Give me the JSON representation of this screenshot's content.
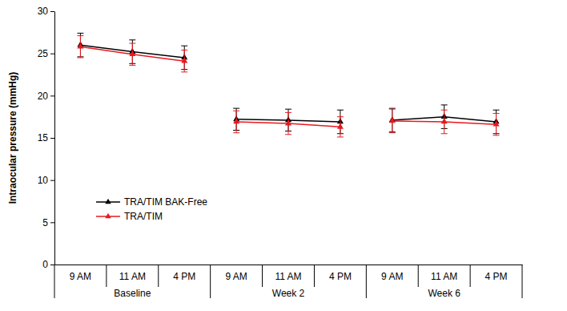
{
  "chart_data": {
    "type": "line",
    "y_label": "Intraocular pressure (mmHg)",
    "categories": [
      "9 AM",
      "11 AM",
      "4 PM",
      "9 AM",
      "11 AM",
      "4 PM",
      "9 AM",
      "11 AM",
      "4 PM"
    ],
    "groups": [
      "Baseline",
      "Baseline",
      "Baseline",
      "Week 2",
      "Week 2",
      "Week 2",
      "Week 6",
      "Week 6",
      "Week 6"
    ],
    "series": [
      {
        "name": "TRA/TIM BAK-Free",
        "color": "#000000",
        "marker": "triangle",
        "values": [
          26.0,
          25.2,
          24.5,
          17.2,
          17.1,
          16.9,
          17.1,
          17.5,
          16.9
        ],
        "errors": [
          1.4,
          1.4,
          1.4,
          1.3,
          1.3,
          1.4,
          1.4,
          1.4,
          1.4
        ]
      },
      {
        "name": "TRA/TIM",
        "color": "#e8191f",
        "marker": "triangle",
        "values": [
          25.8,
          24.9,
          24.1,
          16.9,
          16.7,
          16.3,
          17.0,
          16.9,
          16.6
        ],
        "errors": [
          1.3,
          1.3,
          1.3,
          1.3,
          1.3,
          1.2,
          1.4,
          1.4,
          1.3
        ]
      }
    ],
    "ylim": [
      0,
      30
    ],
    "yticks": [
      0,
      5,
      10,
      15,
      20,
      25,
      30
    ],
    "grid": false,
    "legend": "left"
  }
}
